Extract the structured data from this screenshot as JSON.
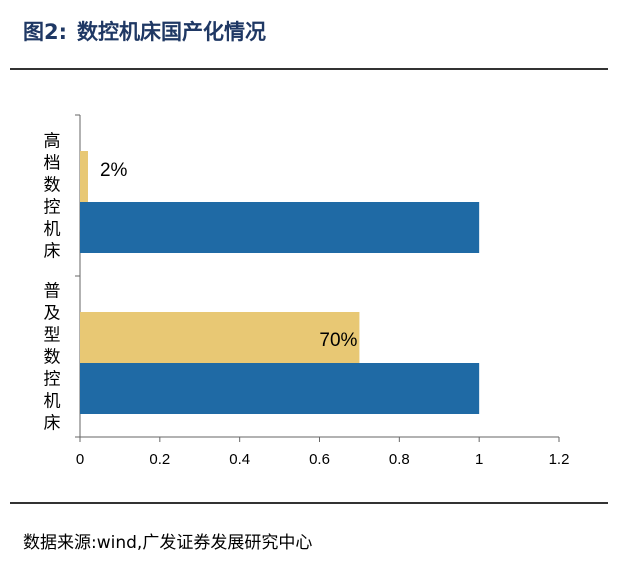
{
  "figure": {
    "title_prefix": "图2:",
    "title_text": "数控机床国产化情况",
    "source_prefix": "数据来源:",
    "source_text": "wind,广发证券发展研究中心"
  },
  "chart_data": {
    "type": "bar",
    "orientation": "horizontal",
    "categories": [
      "高档数控机床",
      "普及型数控机床"
    ],
    "series": [
      {
        "name": "",
        "color": "#e8c874",
        "values": [
          0.02,
          0.7
        ],
        "labels": [
          "2%",
          "70%"
        ]
      },
      {
        "name": "",
        "color": "#1f6aa5",
        "values": [
          1,
          1
        ]
      }
    ],
    "xlim": [
      0,
      1.2
    ],
    "xticks": [
      0,
      0.2,
      0.4,
      0.6,
      0.8,
      1,
      1.2
    ],
    "xtick_labels": [
      "0",
      "0.2",
      "0.4",
      "0.6",
      "0.8",
      "1",
      "1.2"
    ],
    "grid": false,
    "legend": "none"
  }
}
